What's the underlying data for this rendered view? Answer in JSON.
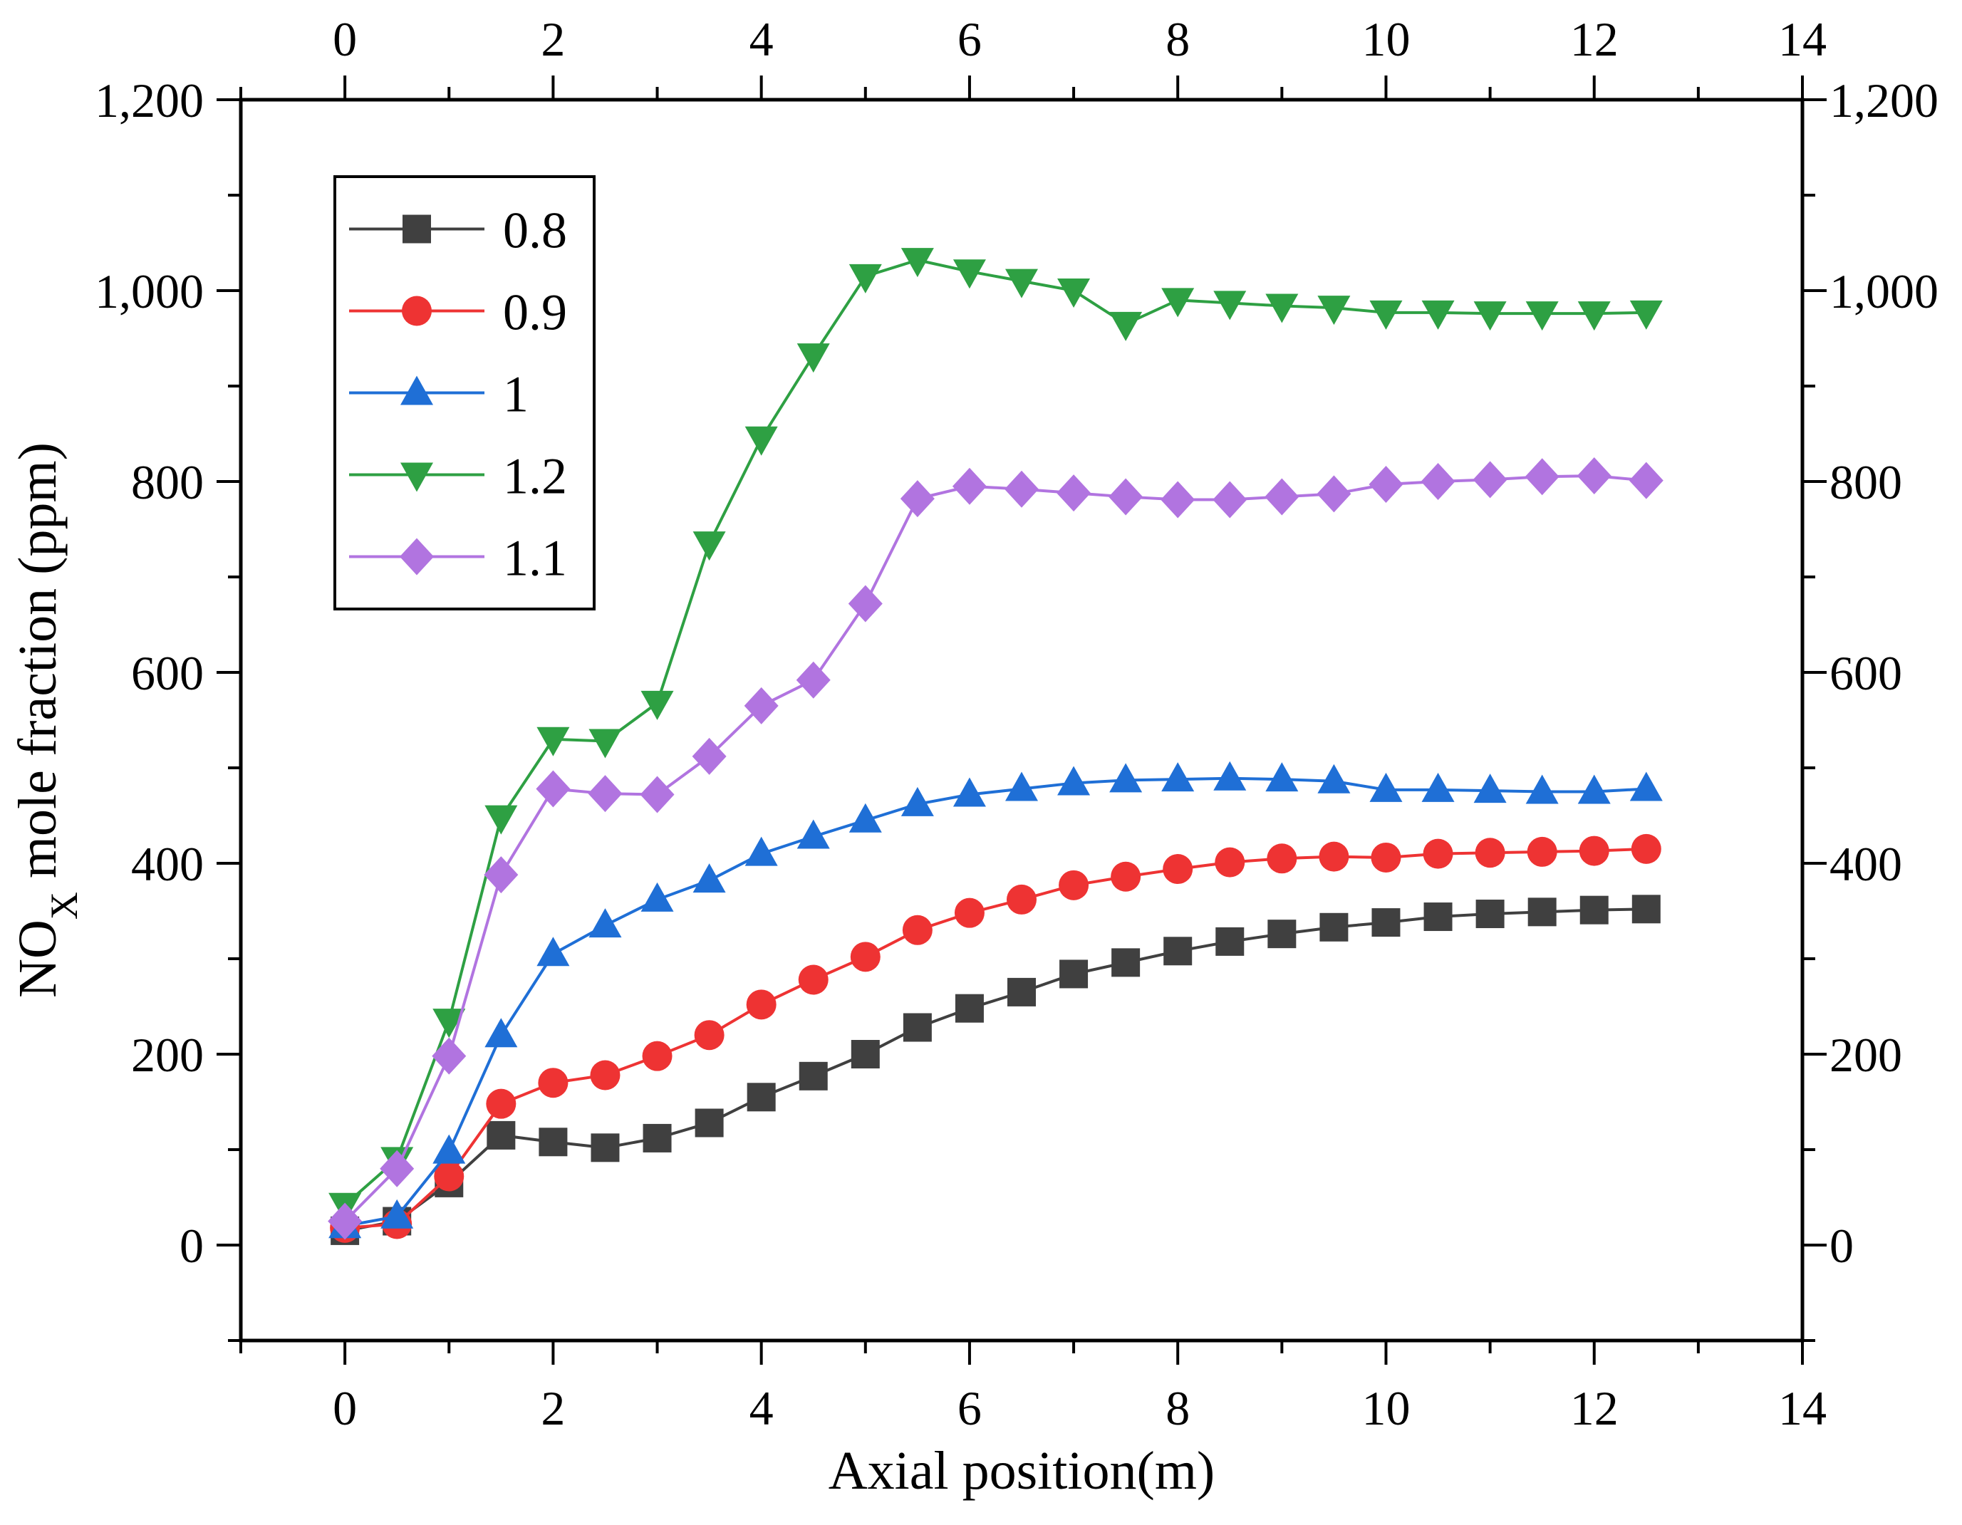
{
  "chart_data": {
    "type": "line",
    "title": "",
    "xlabel": "Axial position(m)",
    "ylabel_main": "NO",
    "ylabel_sub": "X",
    "ylabel_rest": " mole fraction (ppm)",
    "xlim": [
      -1,
      14
    ],
    "ylim": [
      -100,
      1200
    ],
    "xticks": [
      0,
      2,
      4,
      6,
      8,
      10,
      12,
      14
    ],
    "xtick_labels": [
      "0",
      "2",
      "4",
      "6",
      "8",
      "10",
      "12",
      "14"
    ],
    "yticks": [
      0,
      200,
      400,
      600,
      800,
      1000,
      1200
    ],
    "ytick_labels": [
      "0",
      "200",
      "400",
      "600",
      "800",
      "1,000",
      "1,200"
    ],
    "top_axis_mirrored": true,
    "right_axis_mirrored": true,
    "grid": false,
    "legend_position": "top-left",
    "x": [
      0,
      0.5,
      1,
      1.5,
      2,
      2.5,
      3,
      3.5,
      4,
      4.5,
      5,
      5.5,
      6,
      6.5,
      7,
      7.5,
      8,
      8.5,
      9,
      9.5,
      10,
      10.5,
      11,
      11.5,
      12,
      12.5
    ],
    "series": [
      {
        "name": "0.8",
        "color": "#404040",
        "marker": "square",
        "values": [
          15,
          25,
          65,
          115,
          108,
          102,
          112,
          128,
          155,
          177,
          200,
          228,
          248,
          265,
          284,
          296,
          308,
          318,
          326,
          333,
          338,
          344,
          347,
          349,
          351,
          352
        ]
      },
      {
        "name": "0.9",
        "color": "#ee3333",
        "marker": "circle",
        "values": [
          18,
          22,
          72,
          148,
          170,
          178,
          198,
          220,
          252,
          278,
          302,
          330,
          348,
          362,
          377,
          386,
          394,
          401,
          405,
          407,
          406,
          410,
          411,
          412,
          413,
          415
        ]
      },
      {
        "name": "1",
        "color": "#1f6fd6",
        "marker": "triangle-up",
        "values": [
          20,
          30,
          98,
          220,
          305,
          335,
          362,
          382,
          410,
          428,
          445,
          462,
          472,
          478,
          484,
          487,
          488,
          489,
          488,
          486,
          477,
          477,
          476,
          475,
          475,
          478
        ]
      },
      {
        "name": "1.2",
        "color": "#2ea043",
        "marker": "triangle-down",
        "values": [
          42,
          90,
          235,
          448,
          530,
          528,
          568,
          735,
          845,
          932,
          1015,
          1032,
          1020,
          1010,
          1000,
          965,
          990,
          987,
          984,
          982,
          977,
          977,
          976,
          976,
          976,
          977
        ]
      },
      {
        "name": "1.1",
        "color": "#b174e0",
        "marker": "diamond",
        "values": [
          25,
          80,
          198,
          388,
          478,
          473,
          472,
          512,
          565,
          592,
          672,
          782,
          795,
          792,
          788,
          784,
          781,
          781,
          784,
          787,
          797,
          800,
          802,
          805,
          806,
          801
        ]
      }
    ]
  }
}
